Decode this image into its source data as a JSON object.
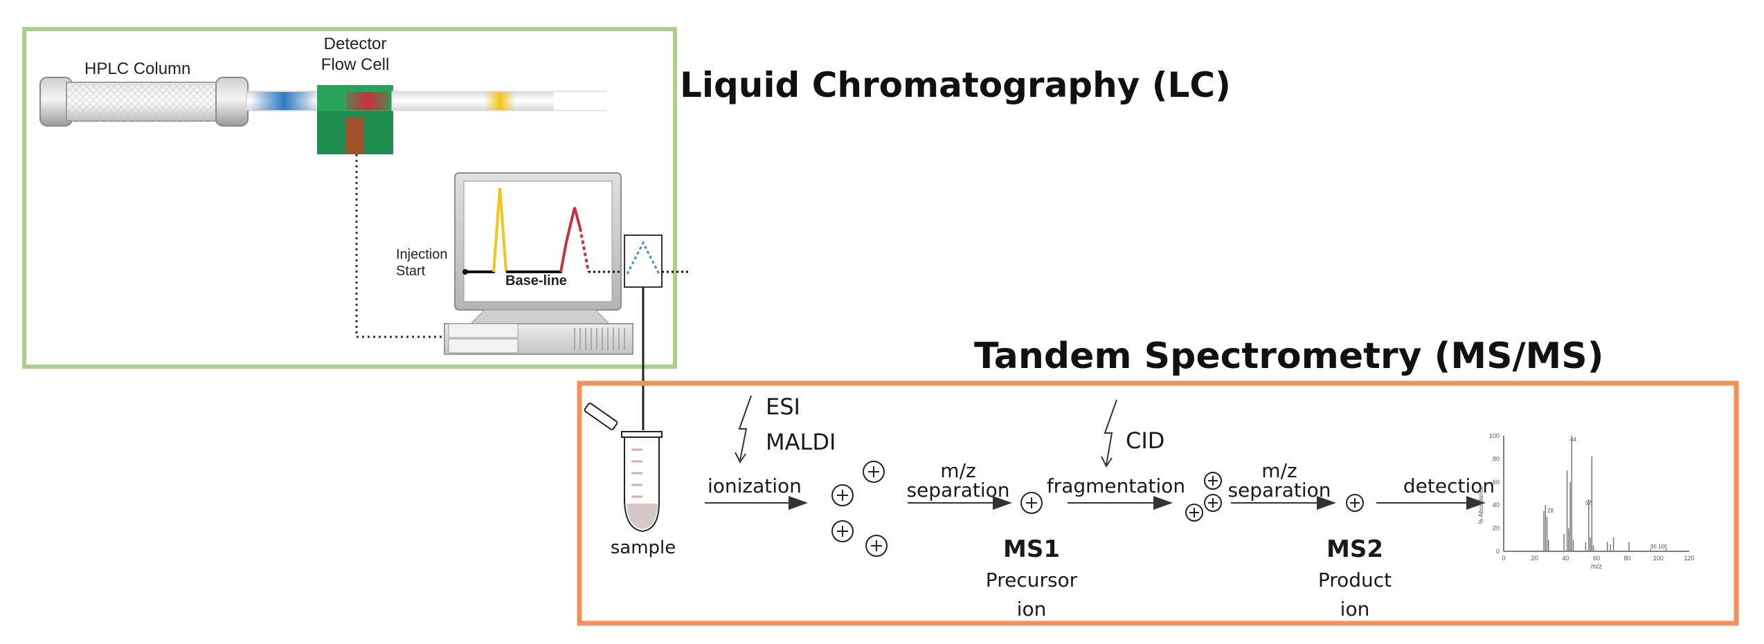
{
  "lc": {
    "title": "Liquid Chromatography (LC)",
    "hplc_column": "HPLC Column",
    "detector_line1": "Detector",
    "detector_line2": "Flow Cell",
    "injection_line1": "Injection",
    "injection_line2": "Start",
    "baseline": "Base-line"
  },
  "ms": {
    "title": "Tandem Spectrometry (MS/MS)",
    "sample": "sample",
    "esi": "ESI",
    "maldi": "MALDI",
    "ionization": "ionization",
    "mz1": "m/z",
    "separation1": "separation",
    "ms1": "MS1",
    "precursor": "Precursor",
    "ion1": "ion",
    "cid": "CID",
    "fragmentation": "fragmentation",
    "mz2": "m/z",
    "separation2": "separation",
    "ms2": "MS2",
    "product": "Product",
    "ion2": "ion",
    "detection": "detection"
  },
  "colors": {
    "lc_border": "#a9d18e",
    "ms_border": "#f4915a",
    "detector_green": "#1e8c4e",
    "peak_yellow": "#f5c518",
    "peak_red": "#c8323c",
    "band_blue": "#2b7bc4",
    "trace_blue": "#3b8fd6"
  },
  "spectrum": {
    "y_ticks": [
      "0",
      "20",
      "40",
      "60",
      "80",
      "100"
    ],
    "x_ticks": [
      "0",
      "20",
      "40",
      "60",
      "80",
      "100",
      "120"
    ],
    "ylabel": "% Abundance",
    "xlabel": "m/z",
    "peak_labels": [
      "44",
      "28",
      "57",
      "95 105"
    ],
    "peaks": [
      [
        26,
        35
      ],
      [
        27,
        40
      ],
      [
        28,
        30
      ],
      [
        29,
        10
      ],
      [
        39,
        15
      ],
      [
        41,
        70
      ],
      [
        42,
        20
      ],
      [
        43,
        60
      ],
      [
        44,
        100
      ],
      [
        45,
        10
      ],
      [
        53,
        8
      ],
      [
        55,
        45
      ],
      [
        56,
        12
      ],
      [
        57,
        82
      ],
      [
        58,
        5
      ],
      [
        67,
        8
      ],
      [
        69,
        6
      ],
      [
        71,
        12
      ],
      [
        81,
        8
      ],
      [
        95,
        2
      ],
      [
        105,
        2
      ]
    ]
  }
}
